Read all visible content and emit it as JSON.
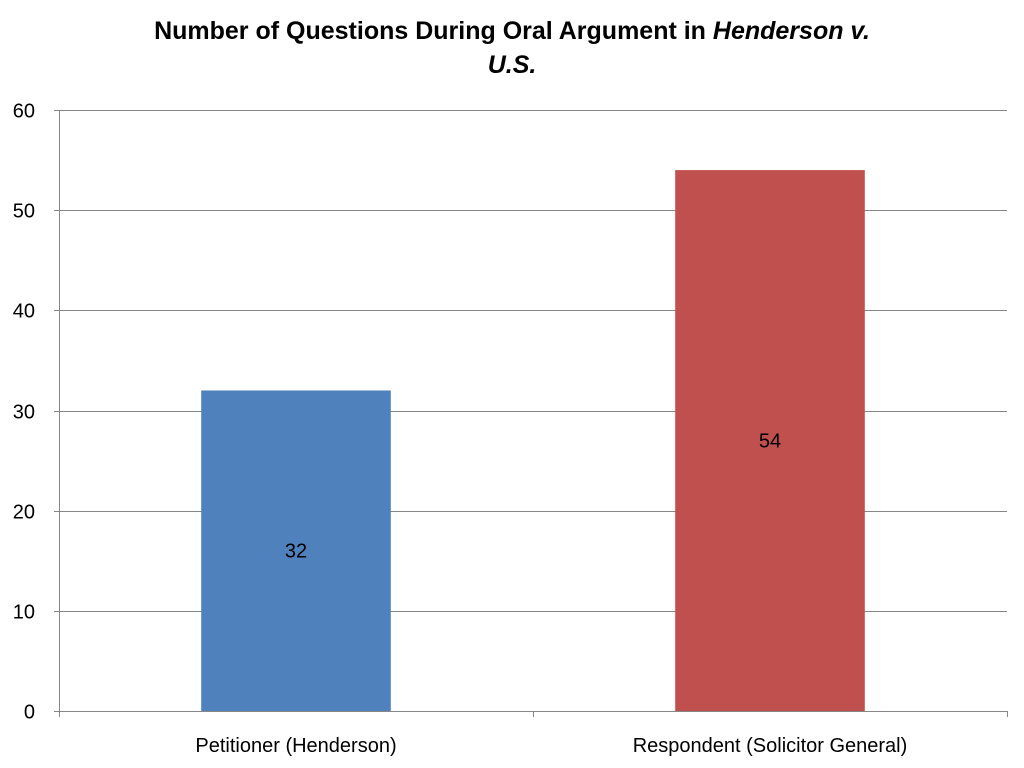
{
  "chart_data": {
    "type": "bar",
    "title": {
      "line1_prefix": "Number of Questions During Oral Argument in ",
      "line1_italic": "Henderson v.",
      "line2_italic": "U.S."
    },
    "categories": [
      "Petitioner (Henderson)",
      "Respondent (Solicitor General)"
    ],
    "values": [
      32,
      54
    ],
    "data_labels": [
      "32",
      "54"
    ],
    "bar_colors": [
      "#4F81BD",
      "#C0504D"
    ],
    "ylim": [
      0,
      60
    ],
    "yticks": [
      0,
      10,
      20,
      30,
      40,
      50,
      60
    ],
    "ytick_labels": [
      "0",
      "10",
      "20",
      "30",
      "40",
      "50",
      "60"
    ],
    "grid": true,
    "legend": "none",
    "xlabel": "",
    "ylabel": ""
  },
  "colors": {
    "gridline": "#868686",
    "axis": "#868686",
    "text": "#000000"
  }
}
